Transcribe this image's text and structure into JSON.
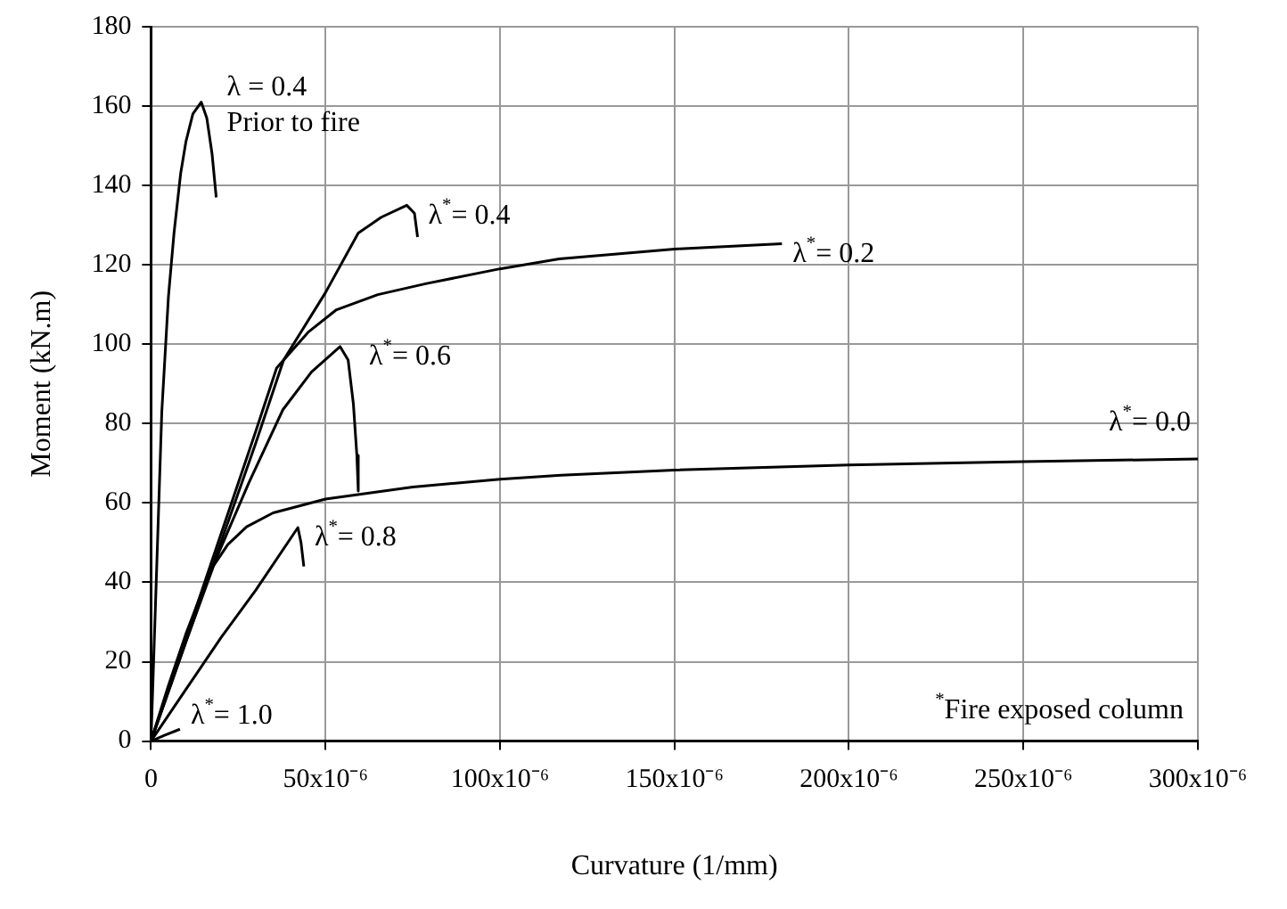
{
  "chart_data": {
    "type": "line",
    "xlabel": "Curvature (1/mm)",
    "ylabel": "Moment (kN.m)",
    "xlim": [
      0,
      0.0003
    ],
    "xticks": [
      0,
      {
        "value": 5e-05,
        "label": "50x10⁻⁶"
      },
      {
        "value": 0.0001,
        "label": "100x10⁻⁶"
      },
      {
        "value": 0.00015,
        "label": "150x10⁻⁶"
      },
      {
        "value": 0.0002,
        "label": "200x10⁻⁶"
      },
      {
        "value": 0.00025,
        "label": "250x10⁻⁶"
      },
      {
        "value": 0.0003,
        "label": "300x10⁻⁶"
      }
    ],
    "ylim": [
      0,
      180
    ],
    "yticks": [
      0,
      20,
      40,
      60,
      80,
      100,
      120,
      140,
      160,
      180
    ],
    "grid": true,
    "legend": false,
    "marker": "none",
    "line_style": "solid",
    "series": [
      {
        "name": "λ = 0.4\nPrior to fire",
        "color": "#000000",
        "x": [
          0,
          1.5e-06,
          3.1e-06,
          5e-06,
          6.6e-06,
          8.5e-06,
          1e-05,
          1.2e-05,
          1.44e-05,
          1.6e-05,
          1.75e-05,
          1.87e-05
        ],
        "values": [
          0,
          40,
          83,
          112,
          128,
          143,
          151,
          158,
          161,
          157,
          148,
          137
        ]
      },
      {
        "name": "λ$^{*}$= 0.4",
        "color": "#000000",
        "x": [
          0,
          1e-05,
          2e-05,
          3e-05,
          3.8e-05,
          5e-05,
          5.94e-05,
          6.6e-05,
          7.33e-05,
          7.55e-05,
          7.64e-05
        ],
        "values": [
          0,
          25,
          50,
          75,
          96,
          113,
          128,
          132,
          135,
          133,
          127
        ]
      },
      {
        "name": "λ$^{*}$= 0.2",
        "color": "#000000",
        "x": [
          0,
          1e-05,
          2e-05,
          3e-05,
          3.6e-05,
          4.5e-05,
          5.3e-05,
          6.5e-05,
          7.9e-05,
          0.0001,
          0.000117,
          0.00015,
          0.0001808
        ],
        "values": [
          0,
          26,
          52,
          78,
          94,
          103,
          108.6,
          112.5,
          115.3,
          119,
          121.5,
          124,
          125.3
        ]
      },
      {
        "name": "λ$^{*}$= 0.6",
        "color": "#000000",
        "x": [
          0,
          1e-05,
          1.87e-05,
          2.8e-05,
          3.78e-05,
          4.6e-05,
          5.42e-05,
          5.65e-05,
          5.8e-05,
          5.9e-05,
          5.94e-05
        ],
        "values": [
          0,
          25,
          46,
          65,
          83.5,
          93,
          99.4,
          96,
          85,
          72,
          63
        ]
      },
      {
        "name": "λ$^{*}$= 0.0",
        "color": "#000000",
        "x": [
          0,
          5e-06,
          1e-05,
          1.7e-05,
          2.2e-05,
          2.74e-05,
          3.5e-05,
          5e-05,
          7.5e-05,
          0.0001,
          0.0001175,
          0.00015,
          0.0002,
          0.00025,
          0.0003
        ],
        "values": [
          0,
          14,
          27,
          43,
          49.5,
          54,
          57.5,
          61,
          64,
          66,
          67,
          68.3,
          69.6,
          70.4,
          71.1
        ]
      },
      {
        "name": "λ$^{*}$= 0.8",
        "color": "#000000",
        "x": [
          0,
          1e-05,
          2e-05,
          3e-05,
          4.21e-05,
          4.3e-05,
          4.38e-05
        ],
        "values": [
          0,
          13,
          26,
          38,
          53.8,
          50,
          44
        ]
      },
      {
        "name": "λ$^{*}$= 1.0",
        "color": "#000000",
        "x": [
          0,
          4e-06,
          8.3e-06
        ],
        "values": [
          0,
          1.5,
          3
        ]
      }
    ],
    "annotations": [
      "$^{*}$Fire exposed column"
    ]
  }
}
